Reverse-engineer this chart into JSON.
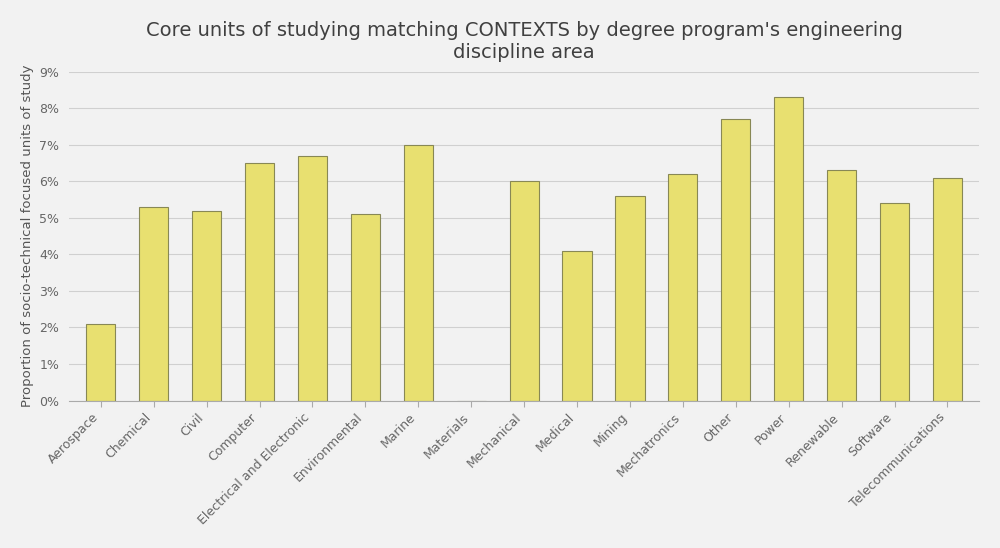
{
  "title": "Core units of studying matching CONTEXTS by degree program's engineering\ndiscipline area",
  "ylabel": "Proportion of socio-technical focused units of study",
  "categories": [
    "Aerospace",
    "Chemical",
    "Civil",
    "Computer",
    "Electrical and Electronic",
    "Environmental",
    "Marine",
    "Materials",
    "Mechanical",
    "Medical",
    "Mining",
    "Mechatronics",
    "Other",
    "Power",
    "Renewable",
    "Software",
    "Telecommunications"
  ],
  "values": [
    0.021,
    0.053,
    0.052,
    0.065,
    0.067,
    0.051,
    0.07,
    0.0,
    0.06,
    0.041,
    0.056,
    0.062,
    0.077,
    0.083,
    0.063,
    0.054,
    0.061
  ],
  "bar_color": "#e8e070",
  "bar_edgecolor": "#888855",
  "bar_linewidth": 0.8,
  "ylim": [
    0,
    0.09
  ],
  "yticks": [
    0.0,
    0.01,
    0.02,
    0.03,
    0.04,
    0.05,
    0.06,
    0.07,
    0.08,
    0.09
  ],
  "ytick_labels": [
    "0%",
    "1%",
    "2%",
    "3%",
    "4%",
    "5%",
    "6%",
    "7%",
    "8%",
    "9%"
  ],
  "figure_background": "#f2f2f2",
  "plot_background": "#f2f2f2",
  "grid_color": "#d0d0d0",
  "title_fontsize": 14,
  "title_color": "#404040",
  "label_fontsize": 9.5,
  "label_color": "#555555",
  "tick_fontsize": 9,
  "tick_color": "#666666",
  "bar_width": 0.55
}
